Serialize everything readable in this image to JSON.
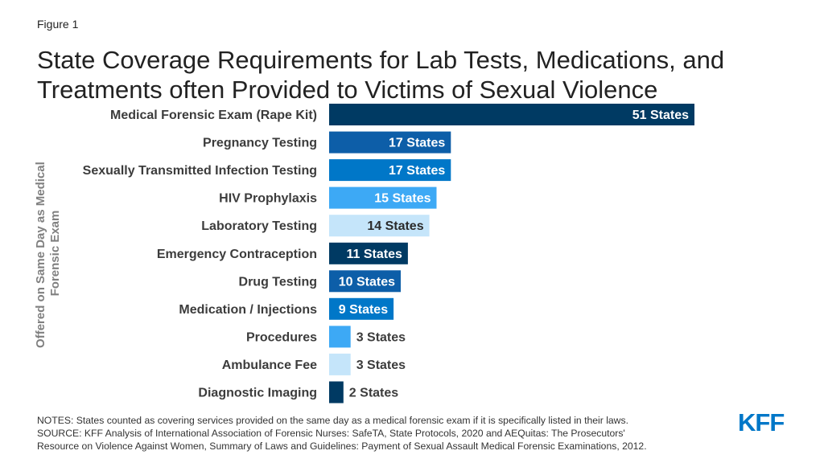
{
  "figure_label": "Figure 1",
  "title": "State Coverage Requirements for Lab Tests, Medications, and Treatments often Provided to Victims of Sexual Violence",
  "notes": "NOTES: States counted as covering services provided on the same day as a medical forensic exam if it is specifically listed in their laws.",
  "source_line1": "SOURCE: KFF Analysis of International Association of Forensic Nurses: SafeTA, State Protocols, 2020 and AEQuitas: The Prosecutors'",
  "source_line2": "Resource on Violence Against Women, Summary of Laws and Guidelines: Payment of Sexual Assault Medical Forensic Examinations, 2012.",
  "logo": "KFF",
  "colors": {
    "dark_navy": "#003a63",
    "medium_blue": "#0d5ea8",
    "bright_blue": "#0077c8",
    "light_blue": "#3da9f5",
    "pale_blue": "#c5e5fa",
    "logo_blue": "#0077c8"
  },
  "chart_data": {
    "type": "bar",
    "orientation": "horizontal",
    "ylabel_lines": [
      "Offered on Same Day as Medical",
      "Forensic Exam"
    ],
    "categories": [
      "Medical Forensic Exam (Rape Kit)",
      "Pregnancy Testing",
      "Sexually Transmitted Infection Testing",
      "HIV Prophylaxis",
      "Laboratory Testing",
      "Emergency Contraception",
      "Drug Testing",
      "Medication / Injections",
      "Procedures",
      "Ambulance Fee",
      "Diagnostic Imaging"
    ],
    "values": [
      51,
      17,
      17,
      15,
      14,
      11,
      10,
      9,
      3,
      3,
      2
    ],
    "data_labels": [
      "51 States",
      "17 States",
      "17 States",
      "15 States",
      "14 States",
      "11 States",
      "10 States",
      "9 States",
      "3 States",
      "3 States",
      "2 States"
    ],
    "bar_colors": [
      "#003a63",
      "#0d5ea8",
      "#0077c8",
      "#3da9f5",
      "#c5e5fa",
      "#003a63",
      "#0d5ea8",
      "#0077c8",
      "#3da9f5",
      "#c5e5fa",
      "#003a63"
    ],
    "label_inside": [
      true,
      true,
      true,
      true,
      true,
      true,
      true,
      true,
      false,
      false,
      false
    ],
    "xlim": [
      0,
      51
    ],
    "grid": false,
    "legend": "none"
  }
}
